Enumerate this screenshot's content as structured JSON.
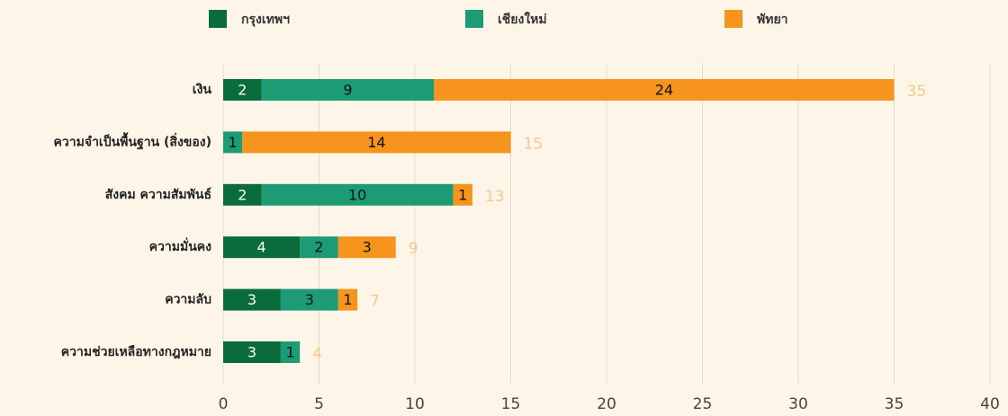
{
  "chart_data": {
    "type": "stacked-bar-horizontal",
    "categories": [
      "เงิน",
      "ความจำเป็นพื้นฐาน (สิ่งของ)",
      "สังคม ความสัมพันธ์",
      "ความมั่นคง",
      "ความลับ",
      "ความช่วยเหลือทางกฎหมาย"
    ],
    "series": [
      {
        "name": "กรุงเทพฯ",
        "color": "#0a6b3b",
        "values": [
          2,
          null,
          2,
          4,
          3,
          3
        ]
      },
      {
        "name": "เชียงใหม่",
        "color": "#1c9b74",
        "values": [
          9,
          1,
          10,
          2,
          3,
          1
        ]
      },
      {
        "name": "พัทยา",
        "color": "#f7941d",
        "values": [
          24,
          14,
          1,
          3,
          1,
          null
        ]
      }
    ],
    "totals": [
      35,
      15,
      13,
      9,
      7,
      4
    ],
    "xlim": [
      0,
      40
    ],
    "xticks": [
      0,
      5,
      10,
      15,
      20,
      25,
      30,
      35,
      40
    ],
    "grid": true
  }
}
